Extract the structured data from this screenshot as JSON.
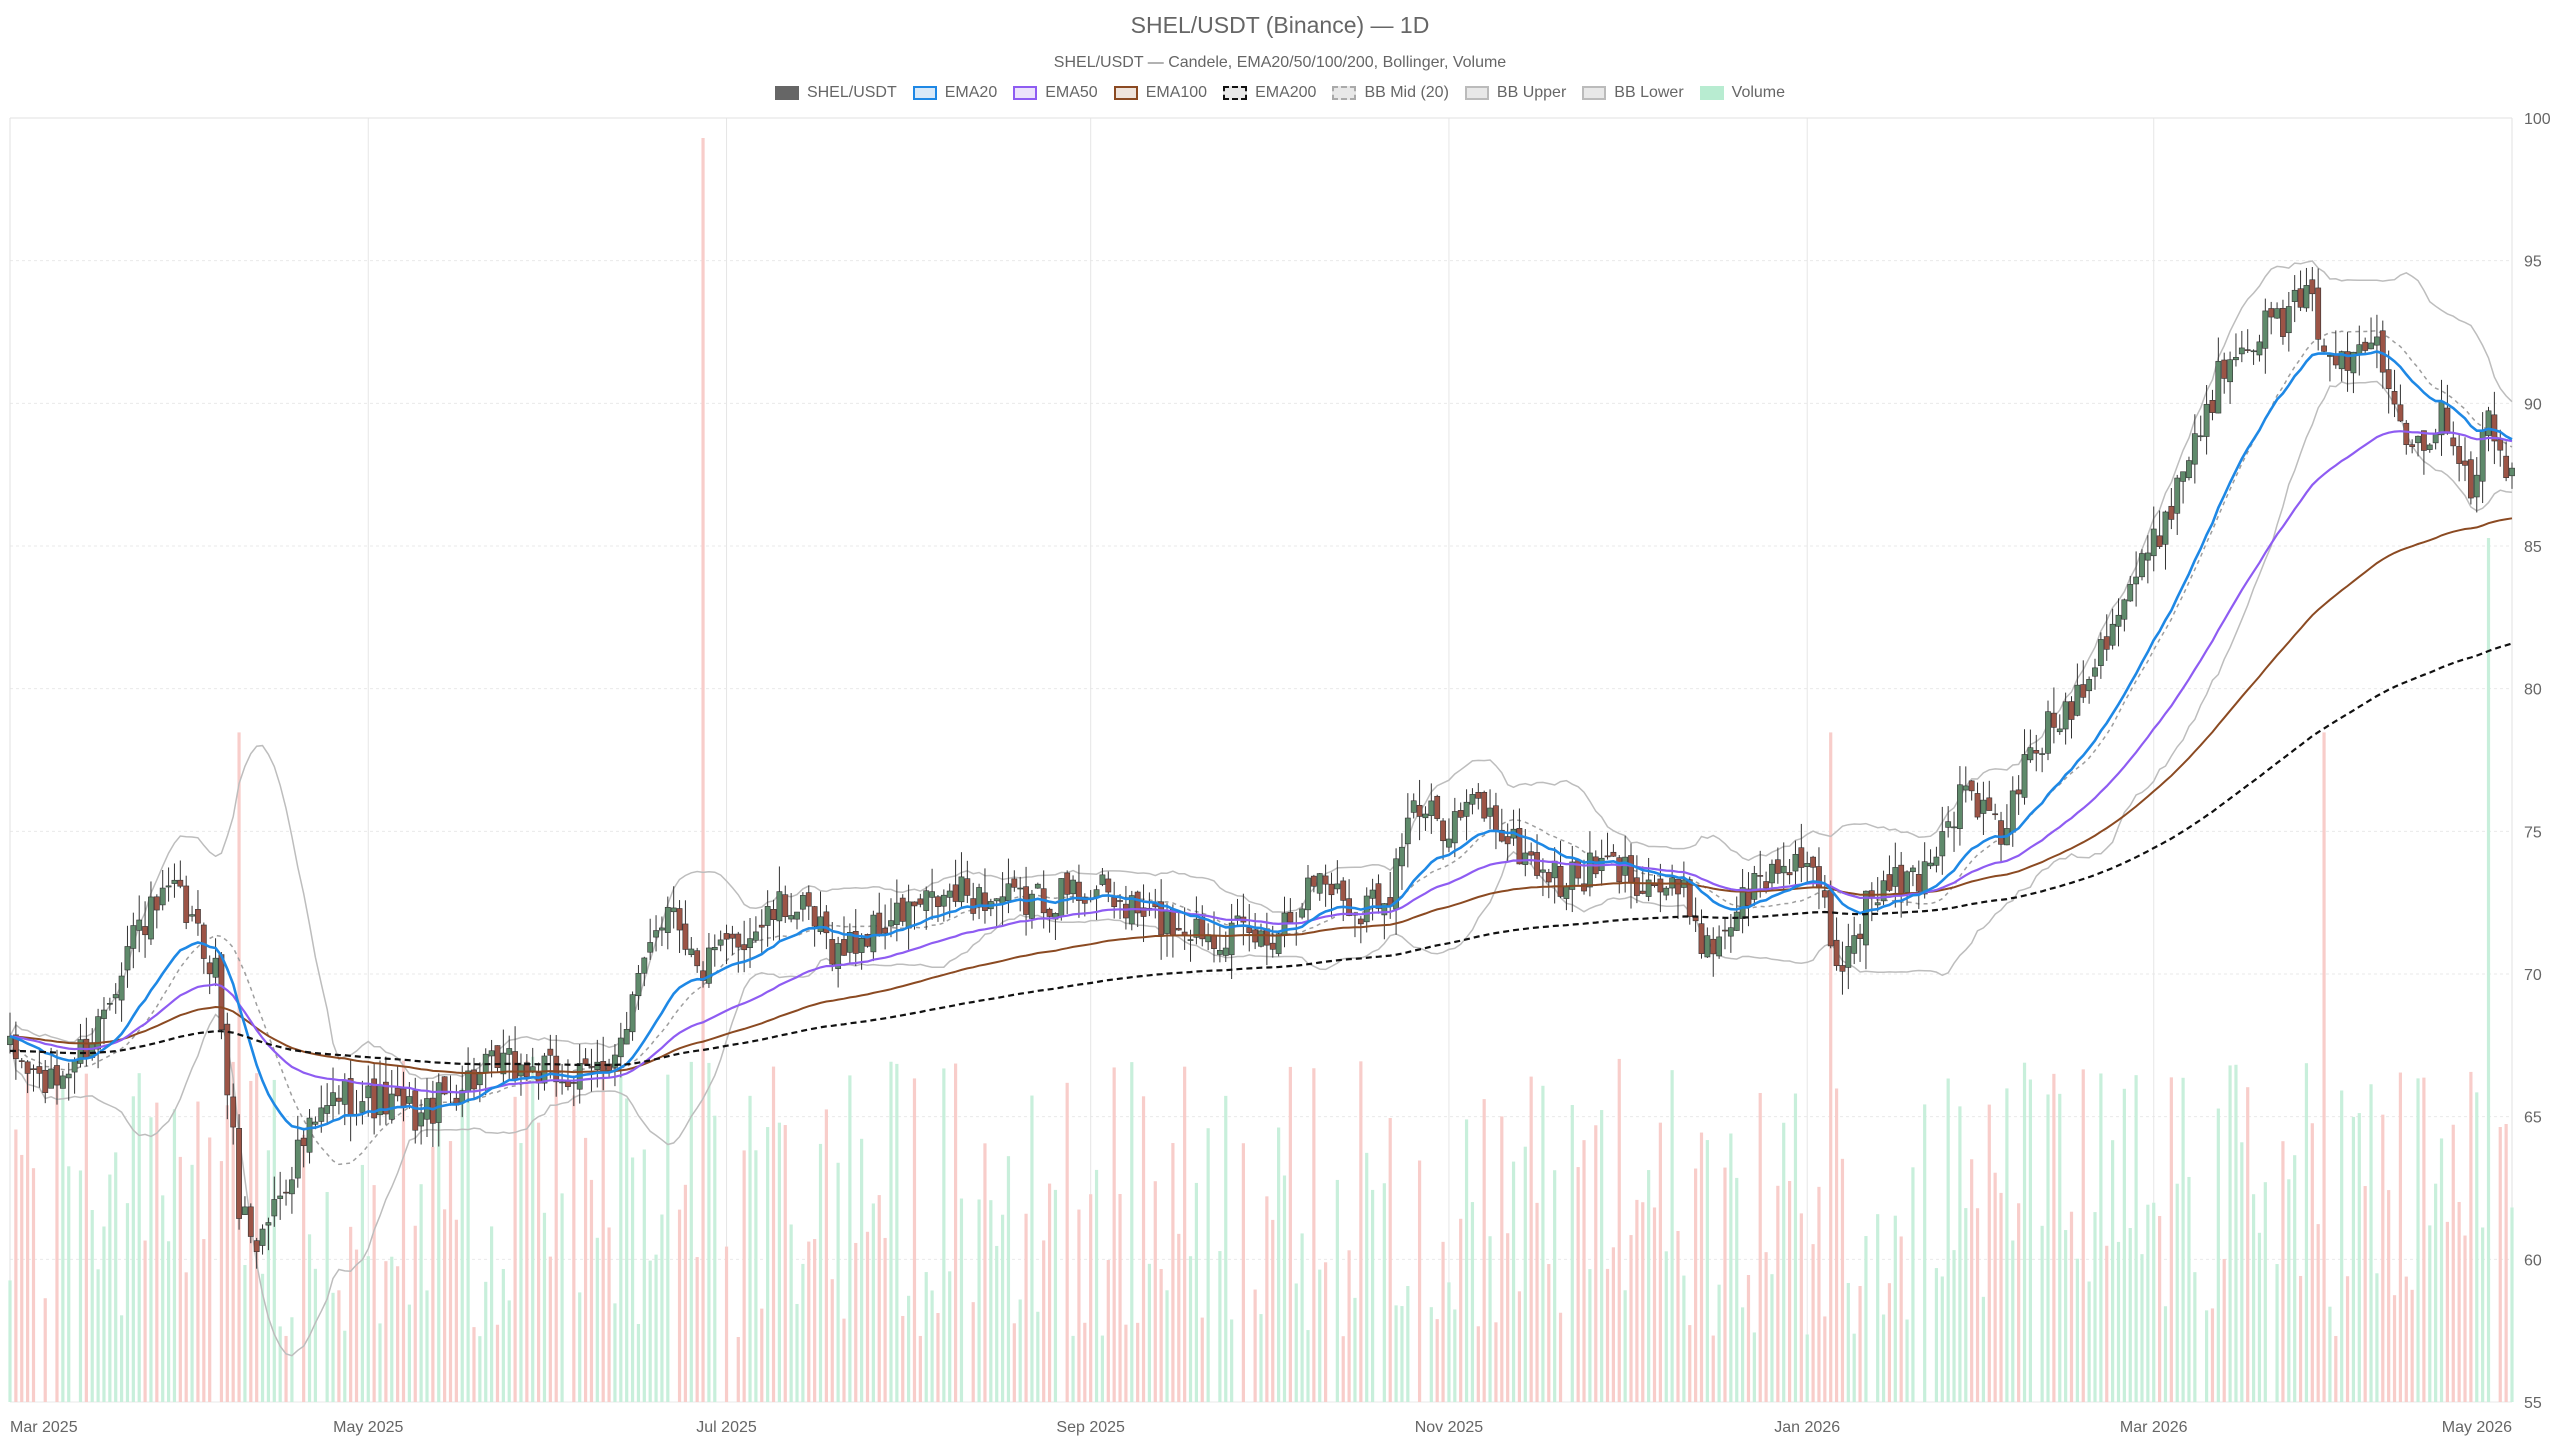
{
  "chart_data": {
    "type": "candlestick",
    "title": "SHEL/USDT (Binance) — 1D",
    "subtitle": "SHEL/USDT — Candele, EMA20/50/100/200, Bollinger, Volume",
    "legend": [
      {
        "key": "candles",
        "label": "SHEL/USDT",
        "color": "#666666",
        "style": "solid-fill"
      },
      {
        "key": "ema20",
        "label": "EMA20",
        "color": "#1e88e5",
        "style": "line"
      },
      {
        "key": "ema50",
        "label": "EMA50",
        "color": "#8e5cf2",
        "style": "line"
      },
      {
        "key": "ema100",
        "label": "EMA100",
        "color": "#8b4a22",
        "style": "line"
      },
      {
        "key": "ema200",
        "label": "EMA200",
        "color": "#111111",
        "style": "dashed"
      },
      {
        "key": "bb_mid",
        "label": "BB Mid (20)",
        "color": "#aaaaaa",
        "style": "dotted"
      },
      {
        "key": "bb_upper",
        "label": "BB Upper",
        "color": "#bbbbbb",
        "style": "line"
      },
      {
        "key": "bb_lower",
        "label": "BB Lower",
        "color": "#bbbbbb",
        "style": "line"
      },
      {
        "key": "volume",
        "label": "Volume",
        "color": "#b8ecd1",
        "style": "bar"
      }
    ],
    "colors": {
      "up": "#5f8a6b",
      "down": "#9c5446",
      "vol_up": "#c8efdb",
      "vol_down": "#f8cdca"
    },
    "y_axis": {
      "position": "right",
      "min": 55,
      "max": 100,
      "ticks": [
        55,
        60,
        65,
        70,
        75,
        80,
        85,
        90,
        95,
        100
      ]
    },
    "x_axis": {
      "start": "2025-03-01",
      "end": "2026-05-01",
      "ticks": [
        {
          "label": "Mar 2025",
          "date": "2025-03-01"
        },
        {
          "label": "May 2025",
          "date": "2025-05-01"
        },
        {
          "label": "Jul 2025",
          "date": "2025-07-01"
        },
        {
          "label": "Sep 2025",
          "date": "2025-09-01"
        },
        {
          "label": "Nov 2025",
          "date": "2025-11-01"
        },
        {
          "label": "Jan 2026",
          "date": "2026-01-01"
        },
        {
          "label": "Mar 2026",
          "date": "2026-03-01"
        },
        {
          "label": "May 2026",
          "date": "2026-05-01"
        }
      ]
    },
    "grid": true,
    "close_anchors": [
      [
        "2025-03-01",
        67.2
      ],
      [
        "2025-03-08",
        66.0
      ],
      [
        "2025-03-15",
        67.8
      ],
      [
        "2025-03-22",
        71.5
      ],
      [
        "2025-03-29",
        72.8
      ],
      [
        "2025-04-05",
        70.2
      ],
      [
        "2025-04-09",
        62.0
      ],
      [
        "2025-04-12",
        60.5
      ],
      [
        "2025-04-19",
        63.8
      ],
      [
        "2025-04-26",
        65.8
      ],
      [
        "2025-05-03",
        65.5
      ],
      [
        "2025-05-10",
        65.0
      ],
      [
        "2025-05-17",
        66.2
      ],
      [
        "2025-05-24",
        66.8
      ],
      [
        "2025-05-31",
        66.5
      ],
      [
        "2025-06-07",
        66.3
      ],
      [
        "2025-06-14",
        67.8
      ],
      [
        "2025-06-18",
        71.5
      ],
      [
        "2025-06-22",
        72.6
      ],
      [
        "2025-06-26",
        70.0
      ],
      [
        "2025-07-03",
        71.2
      ],
      [
        "2025-07-12",
        72.5
      ],
      [
        "2025-07-20",
        70.8
      ],
      [
        "2025-08-01",
        72.2
      ],
      [
        "2025-08-10",
        72.8
      ],
      [
        "2025-08-20",
        72.5
      ],
      [
        "2025-09-01",
        73.0
      ],
      [
        "2025-09-10",
        72.0
      ],
      [
        "2025-09-20",
        71.6
      ],
      [
        "2025-10-01",
        71.2
      ],
      [
        "2025-10-10",
        73.5
      ],
      [
        "2025-10-16",
        72.3
      ],
      [
        "2025-10-22",
        73.0
      ],
      [
        "2025-10-25",
        75.6
      ],
      [
        "2025-11-01",
        75.3
      ],
      [
        "2025-11-06",
        76.0
      ],
      [
        "2025-11-12",
        74.5
      ],
      [
        "2025-11-20",
        73.2
      ],
      [
        "2025-11-28",
        73.8
      ],
      [
        "2025-12-05",
        73.3
      ],
      [
        "2025-12-12",
        72.5
      ],
      [
        "2025-12-15",
        70.8
      ],
      [
        "2025-12-22",
        72.9
      ],
      [
        "2025-12-30",
        74.2
      ],
      [
        "2026-01-04",
        72.3
      ],
      [
        "2026-01-06",
        70.1
      ],
      [
        "2026-01-12",
        72.8
      ],
      [
        "2026-01-20",
        73.4
      ],
      [
        "2026-01-28",
        76.5
      ],
      [
        "2026-02-03",
        74.8
      ],
      [
        "2026-02-08",
        77.8
      ],
      [
        "2026-02-15",
        79.5
      ],
      [
        "2026-02-22",
        82.5
      ],
      [
        "2026-03-01",
        85.0
      ],
      [
        "2026-03-08",
        88.8
      ],
      [
        "2026-03-15",
        92.3
      ],
      [
        "2026-03-22",
        92.8
      ],
      [
        "2026-03-27",
        93.6
      ],
      [
        "2026-04-02",
        91.2
      ],
      [
        "2026-04-08",
        92.4
      ],
      [
        "2026-04-14",
        88.6
      ],
      [
        "2026-04-20",
        89.6
      ],
      [
        "2026-04-24",
        87.2
      ],
      [
        "2026-04-27",
        89.4
      ],
      [
        "2026-05-01",
        87.2
      ]
    ],
    "volume_spikes": [
      {
        "date": "2025-04-05",
        "value": 1.9
      },
      {
        "date": "2025-04-09",
        "value": 1.55
      },
      {
        "date": "2025-06-27",
        "value": 3.0
      },
      {
        "date": "2026-01-05",
        "value": 1.55
      },
      {
        "date": "2026-03-30",
        "value": 1.55
      },
      {
        "date": "2026-04-27",
        "value": 2.0
      }
    ]
  }
}
